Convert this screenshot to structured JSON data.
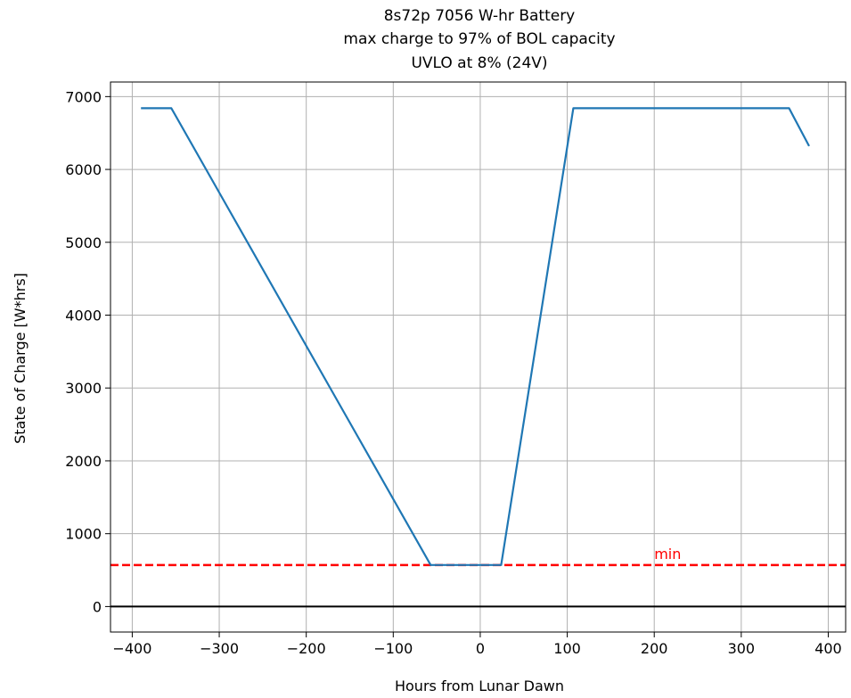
{
  "chart_data": {
    "type": "line",
    "title_lines": [
      "8s72p 7056 W-hr Battery",
      "max charge to 97% of BOL capacity",
      "UVLO at  8% (24V)"
    ],
    "xlabel": "Hours from Lunar Dawn",
    "ylabel": "State of Charge [W*hrs]",
    "xlim": [
      -425,
      420
    ],
    "ylim": [
      -350,
      7200
    ],
    "grid": true,
    "x_ticks": [
      -400,
      -300,
      -200,
      -100,
      0,
      100,
      200,
      300,
      400
    ],
    "x_tick_labels": [
      "−400",
      "−300",
      "−200",
      "−100",
      "0",
      "100",
      "200",
      "300",
      "400"
    ],
    "y_ticks": [
      0,
      1000,
      2000,
      3000,
      4000,
      5000,
      6000,
      7000
    ],
    "y_tick_labels": [
      "0",
      "1000",
      "2000",
      "3000",
      "4000",
      "5000",
      "6000",
      "7000"
    ],
    "series": [
      {
        "color": "#1f77b4",
        "x": [
          -390,
          -355,
          -57,
          24,
          107,
          355,
          378
        ],
        "y": [
          6840,
          6840,
          570,
          570,
          6840,
          6840,
          6320
        ]
      }
    ],
    "reference_lines": [
      {
        "y": 570,
        "color": "#ff0000",
        "style": "dashed",
        "label": "min",
        "label_x": 200
      },
      {
        "y": 0,
        "color": "#000000",
        "style": "solid"
      }
    ]
  }
}
